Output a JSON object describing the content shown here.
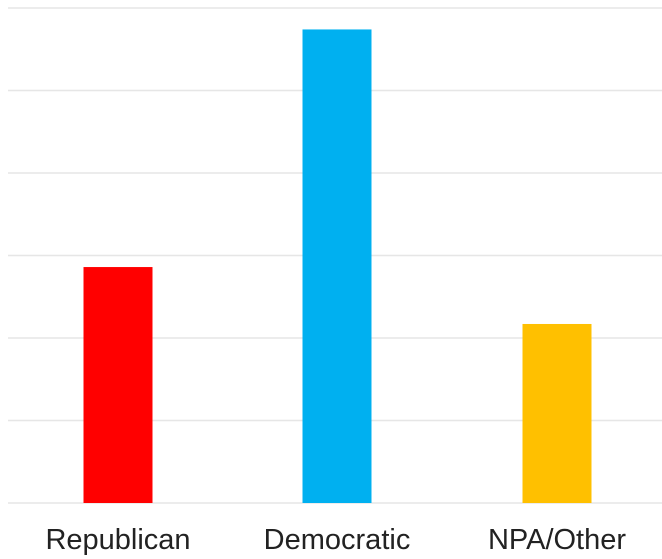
{
  "chart_data": {
    "type": "bar",
    "title": "",
    "xlabel": "",
    "ylabel": "",
    "categories": [
      "Republican",
      "Democratic",
      "NPA/Other"
    ],
    "values": [
      28.6,
      57.4,
      21.7
    ],
    "colors": [
      "#ff0000",
      "#00b0f0",
      "#ffc000"
    ],
    "ylim": [
      0,
      60
    ],
    "gridline_values": [
      0,
      10,
      20,
      30,
      40,
      50,
      60
    ],
    "grid": true,
    "y_tick_labels_shown": false,
    "legend": "none"
  }
}
